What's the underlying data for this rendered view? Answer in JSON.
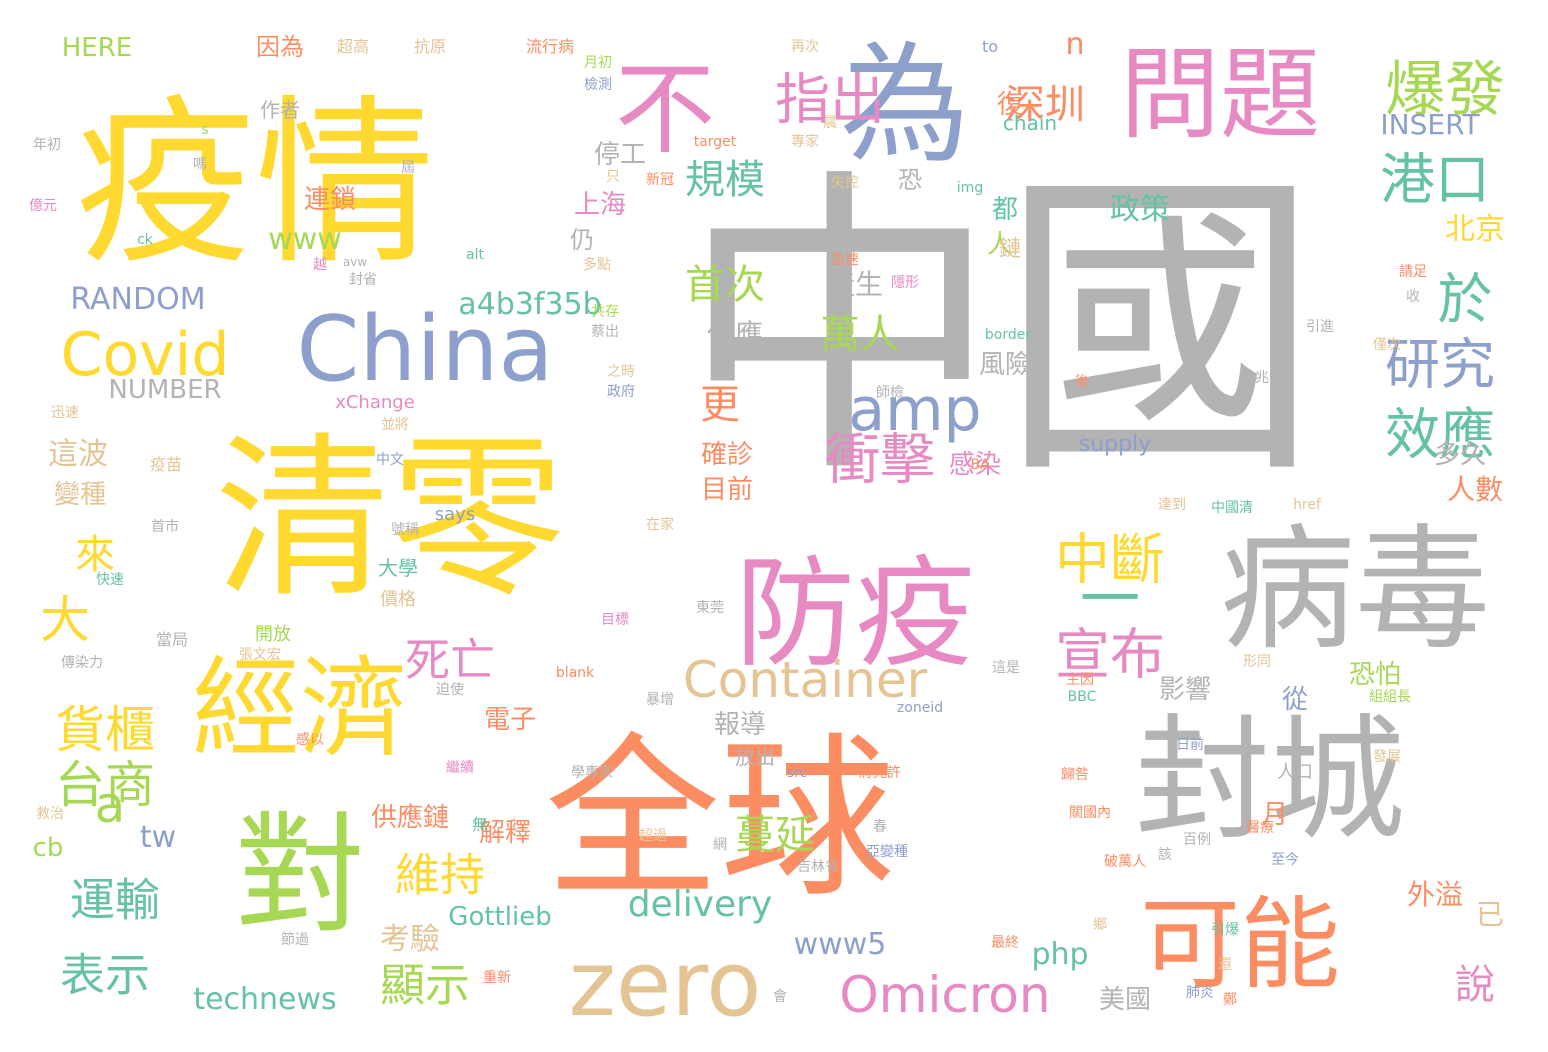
{
  "palette": {
    "gray": "#b3b3b3",
    "yellow": "#ffd92f",
    "orange": "#fc8d62",
    "blue": "#8da0cb",
    "pink": "#e78ac3",
    "green": "#a6d854",
    "teal": "#66c2a5",
    "tan": "#e5c494"
  },
  "words": [
    {
      "text": "中國",
      "color": "gray",
      "size": 320
    },
    {
      "text": "疫情",
      "color": "yellow",
      "size": 180
    },
    {
      "text": "清零",
      "color": "yellow",
      "size": 175
    },
    {
      "text": "全球",
      "color": "orange",
      "size": 175
    },
    {
      "text": "為",
      "color": "blue",
      "size": 130
    },
    {
      "text": "不",
      "color": "pink",
      "size": 100
    },
    {
      "text": "問題",
      "color": "pink",
      "size": 100
    },
    {
      "text": "病毒",
      "color": "gray",
      "size": 135
    },
    {
      "text": "封城",
      "color": "gray",
      "size": 135
    },
    {
      "text": "China",
      "color": "blue",
      "size": 90
    },
    {
      "text": "防疫",
      "color": "pink",
      "size": 120
    },
    {
      "text": "經濟",
      "color": "yellow",
      "size": 108
    },
    {
      "text": "對",
      "color": "green",
      "size": 130
    },
    {
      "text": "可能",
      "color": "orange",
      "size": 100
    },
    {
      "text": "zero",
      "color": "tan",
      "size": 90
    },
    {
      "text": "指出",
      "color": "pink",
      "size": 55
    },
    {
      "text": "爆發",
      "color": "green",
      "size": 60
    },
    {
      "text": "港口",
      "color": "teal",
      "size": 55
    },
    {
      "text": "於",
      "color": "teal",
      "size": 55
    },
    {
      "text": "研究",
      "color": "blue",
      "size": 55
    },
    {
      "text": "效應",
      "color": "teal",
      "size": 55
    },
    {
      "text": "Covid",
      "color": "yellow",
      "size": 60
    },
    {
      "text": "amp",
      "color": "blue",
      "size": 60
    },
    {
      "text": "衝擊",
      "color": "pink",
      "size": 55
    },
    {
      "text": "中斷",
      "color": "yellow",
      "size": 55
    },
    {
      "text": "一",
      "color": "teal",
      "size": 60
    },
    {
      "text": "宣布",
      "color": "pink",
      "size": 55
    },
    {
      "text": "Container",
      "color": "tan",
      "size": 50
    },
    {
      "text": "Omicron",
      "color": "pink",
      "size": 50
    },
    {
      "text": "規模",
      "color": "teal",
      "size": 40
    },
    {
      "text": "深圳",
      "color": "orange",
      "size": 40
    },
    {
      "text": "貨櫃",
      "color": "yellow",
      "size": 50
    },
    {
      "text": "台商",
      "color": "green",
      "size": 50
    },
    {
      "text": "死亡",
      "color": "pink",
      "size": 45
    },
    {
      "text": "大",
      "color": "yellow",
      "size": 50
    },
    {
      "text": "來",
      "color": "yellow",
      "size": 40
    },
    {
      "text": "萬人",
      "color": "green",
      "size": 40
    },
    {
      "text": "首次",
      "color": "green",
      "size": 40
    },
    {
      "text": "a4b3f35b",
      "color": "teal",
      "size": 30
    },
    {
      "text": "www",
      "color": "green",
      "size": 30
    },
    {
      "text": "RANDOM",
      "color": "blue",
      "size": 30
    },
    {
      "text": "NUMBER",
      "color": "gray",
      "size": 26
    },
    {
      "text": "政策",
      "color": "teal",
      "size": 30
    },
    {
      "text": "北京",
      "color": "yellow",
      "size": 30
    },
    {
      "text": "上海",
      "color": "pink",
      "size": 26
    },
    {
      "text": "停工",
      "color": "gray",
      "size": 26
    },
    {
      "text": "產生",
      "color": "gray",
      "size": 28
    },
    {
      "text": "供應",
      "color": "gray",
      "size": 28
    },
    {
      "text": "連鎖",
      "color": "orange",
      "size": 26
    },
    {
      "text": "更",
      "color": "orange",
      "size": 40
    },
    {
      "text": "這波",
      "color": "tan",
      "size": 30
    },
    {
      "text": "變種",
      "color": "tan",
      "size": 26
    },
    {
      "text": "確診",
      "color": "orange",
      "size": 26
    },
    {
      "text": "目前",
      "color": "orange",
      "size": 26
    },
    {
      "text": "感染",
      "color": "pink",
      "size": 26
    },
    {
      "text": "人數",
      "color": "orange",
      "size": 28
    },
    {
      "text": "多久",
      "color": "gray",
      "size": 26
    },
    {
      "text": "風險",
      "color": "gray",
      "size": 26
    },
    {
      "text": "INSERT",
      "color": "blue",
      "size": 28
    },
    {
      "text": "HERE",
      "color": "green",
      "size": 26
    },
    {
      "text": "因為",
      "color": "orange",
      "size": 24
    },
    {
      "text": "作者",
      "color": "gray",
      "size": 20
    },
    {
      "text": "恐",
      "color": "gray",
      "size": 24
    },
    {
      "text": "都",
      "color": "teal",
      "size": 26
    },
    {
      "text": "仍",
      "color": "gray",
      "size": 24
    },
    {
      "text": "人",
      "color": "green",
      "size": 26
    },
    {
      "text": "a",
      "color": "green",
      "size": 50
    },
    {
      "text": "tw",
      "color": "blue",
      "size": 30
    },
    {
      "text": "cb",
      "color": "green",
      "size": 26
    },
    {
      "text": "運輸",
      "color": "teal",
      "size": 45
    },
    {
      "text": "表示",
      "color": "teal",
      "size": 45
    },
    {
      "text": "technews",
      "color": "teal",
      "size": 30
    },
    {
      "text": "考驗",
      "color": "tan",
      "size": 30
    },
    {
      "text": "顯示",
      "color": "green",
      "size": 45
    },
    {
      "text": "維持",
      "color": "yellow",
      "size": 45
    },
    {
      "text": "蔓延",
      "color": "green",
      "size": 40
    },
    {
      "text": "delivery",
      "color": "teal",
      "size": 36
    },
    {
      "text": "www5",
      "color": "blue",
      "size": 30
    },
    {
      "text": "Gottlieb",
      "color": "teal",
      "size": 26
    },
    {
      "text": "php",
      "color": "teal",
      "size": 30
    },
    {
      "text": "美國",
      "color": "gray",
      "size": 26
    },
    {
      "text": "說",
      "color": "pink",
      "size": 40
    },
    {
      "text": "外溢",
      "color": "orange",
      "size": 28
    },
    {
      "text": "已",
      "color": "tan",
      "size": 28
    },
    {
      "text": "恐怕",
      "color": "green",
      "size": 26
    },
    {
      "text": "從",
      "color": "blue",
      "size": 26
    },
    {
      "text": "影響",
      "color": "gray",
      "size": 26
    },
    {
      "text": "報導",
      "color": "gray",
      "size": 26
    },
    {
      "text": "電子",
      "color": "orange",
      "size": 26
    },
    {
      "text": "解釋",
      "color": "orange",
      "size": 26
    },
    {
      "text": "供應鏈",
      "color": "orange",
      "size": 26
    },
    {
      "text": "月",
      "color": "orange",
      "size": 26
    },
    {
      "text": "n",
      "color": "orange",
      "size": 30
    },
    {
      "text": "復",
      "color": "orange",
      "size": 26
    },
    {
      "text": "鏈",
      "color": "tan",
      "size": 22
    },
    {
      "text": "supply",
      "color": "blue",
      "size": 22
    },
    {
      "text": "chain",
      "color": "teal",
      "size": 20
    },
    {
      "text": "xChange",
      "color": "pink",
      "size": 18
    },
    {
      "text": "says",
      "color": "blue",
      "size": 18
    },
    {
      "text": "大學",
      "color": "teal",
      "size": 20
    },
    {
      "text": "價格",
      "color": "tan",
      "size": 18
    },
    {
      "text": "開放",
      "color": "green",
      "size": 18
    },
    {
      "text": "放出",
      "color": "gray",
      "size": 20
    },
    {
      "text": "人口",
      "color": "gray",
      "size": 18
    },
    {
      "text": "疫苗",
      "color": "tan",
      "size": 16
    },
    {
      "text": "超高",
      "color": "tan",
      "size": 16
    },
    {
      "text": "抗原",
      "color": "tan",
      "size": 16
    },
    {
      "text": "流行病",
      "color": "orange",
      "size": 16
    },
    {
      "text": "月初",
      "color": "green",
      "size": 14
    },
    {
      "text": "檢測",
      "color": "blue",
      "size": 14
    },
    {
      "text": "再次",
      "color": "tan",
      "size": 14
    },
    {
      "text": "to",
      "color": "blue",
      "size": 16
    },
    {
      "text": "target",
      "color": "orange",
      "size": 14
    },
    {
      "text": "專家",
      "color": "tan",
      "size": 14
    },
    {
      "text": "晨",
      "color": "tan",
      "size": 14
    },
    {
      "text": "新冠",
      "color": "orange",
      "size": 14
    },
    {
      "text": "失控",
      "color": "tan",
      "size": 14
    },
    {
      "text": "img",
      "color": "teal",
      "size": 14
    },
    {
      "text": "急速",
      "color": "orange",
      "size": 14
    },
    {
      "text": "多點",
      "color": "tan",
      "size": 14
    },
    {
      "text": "封省",
      "color": "gray",
      "size": 14
    },
    {
      "text": "共存",
      "color": "green",
      "size": 14
    },
    {
      "text": "蔡出",
      "color": "gray",
      "size": 14
    },
    {
      "text": "之時",
      "color": "tan",
      "size": 14
    },
    {
      "text": "政府",
      "color": "blue",
      "size": 14
    },
    {
      "text": "border",
      "color": "teal",
      "size": 14
    },
    {
      "text": "僅次",
      "color": "tan",
      "size": 14
    },
    {
      "text": "後",
      "color": "orange",
      "size": 14
    },
    {
      "text": "達到",
      "color": "tan",
      "size": 14
    },
    {
      "text": "中國清",
      "color": "teal",
      "size": 14
    },
    {
      "text": "href",
      "color": "tan",
      "size": 14
    },
    {
      "text": "在家",
      "color": "tan",
      "size": 14
    },
    {
      "text": "號稱",
      "color": "gray",
      "size": 14
    },
    {
      "text": "中文",
      "color": "blue",
      "size": 14
    },
    {
      "text": "並將",
      "color": "tan",
      "size": 14
    },
    {
      "text": "迅速",
      "color": "tan",
      "size": 14
    },
    {
      "text": "首市",
      "color": "gray",
      "size": 14
    },
    {
      "text": "當局",
      "color": "gray",
      "size": 16
    },
    {
      "text": "目標",
      "color": "pink",
      "size": 14
    },
    {
      "text": "張文宏",
      "color": "tan",
      "size": 14
    },
    {
      "text": "傳染力",
      "color": "gray",
      "size": 14
    },
    {
      "text": "blank",
      "color": "orange",
      "size": 14
    },
    {
      "text": "東莞",
      "color": "gray",
      "size": 14
    },
    {
      "text": "zoneid",
      "color": "blue",
      "size": 14
    },
    {
      "text": "這是",
      "color": "gray",
      "size": 14
    },
    {
      "text": "主因",
      "color": "orange",
      "size": 14
    },
    {
      "text": "BBC",
      "color": "teal",
      "size": 14
    },
    {
      "text": "形同",
      "color": "tan",
      "size": 14
    },
    {
      "text": "組組長",
      "color": "green",
      "size": 14
    },
    {
      "text": "日前",
      "color": "blue",
      "size": 14
    },
    {
      "text": "src",
      "color": "blue",
      "size": 14
    },
    {
      "text": "學專家",
      "color": "gray",
      "size": 14
    },
    {
      "text": "將允許",
      "color": "orange",
      "size": 14
    },
    {
      "text": "歸咎",
      "color": "orange",
      "size": 14
    },
    {
      "text": "發展",
      "color": "tan",
      "size": 14
    },
    {
      "text": "繼續",
      "color": "pink",
      "size": 14
    },
    {
      "text": "醫療",
      "color": "orange",
      "size": 14
    },
    {
      "text": "關國內",
      "color": "orange",
      "size": 14
    },
    {
      "text": "超過",
      "color": "tan",
      "size": 14
    },
    {
      "text": "亞變種",
      "color": "blue",
      "size": 14
    },
    {
      "text": "破萬人",
      "color": "orange",
      "size": 14
    },
    {
      "text": "吉林省",
      "color": "gray",
      "size": 14
    },
    {
      "text": "至今",
      "color": "blue",
      "size": 14
    },
    {
      "text": "百例",
      "color": "gray",
      "size": 14
    },
    {
      "text": "引爆",
      "color": "teal",
      "size": 14
    },
    {
      "text": "節過",
      "color": "gray",
      "size": 14
    },
    {
      "text": "重新",
      "color": "orange",
      "size": 14
    },
    {
      "text": "會",
      "color": "gray",
      "size": 14
    },
    {
      "text": "肺炎",
      "color": "blue",
      "size": 14
    },
    {
      "text": "救治",
      "color": "tan",
      "size": 14
    },
    {
      "text": "請足",
      "color": "orange",
      "size": 14
    },
    {
      "text": "收",
      "color": "gray",
      "size": 14
    },
    {
      "text": "引進",
      "color": "gray",
      "size": 14
    },
    {
      "text": "前兆",
      "color": "gray",
      "size": 14
    },
    {
      "text": "師檢",
      "color": "gray",
      "size": 14
    },
    {
      "text": "隱形",
      "color": "pink",
      "size": 14
    },
    {
      "text": "BA",
      "color": "orange",
      "size": 14
    },
    {
      "text": "只",
      "color": "tan",
      "size": 14
    },
    {
      "text": "屆",
      "color": "gray",
      "size": 14
    },
    {
      "text": "alt",
      "color": "teal",
      "size": 14
    },
    {
      "text": "avw",
      "color": "gray",
      "size": 12
    },
    {
      "text": "越",
      "color": "pink",
      "size": 14
    },
    {
      "text": "ck",
      "color": "teal",
      "size": 14
    },
    {
      "text": "億元",
      "color": "pink",
      "size": 14
    },
    {
      "text": "年初",
      "color": "gray",
      "size": 14
    },
    {
      "text": "嗎",
      "color": "gray",
      "size": 14
    },
    {
      "text": "s",
      "color": "green",
      "size": 14
    },
    {
      "text": "感以",
      "color": "orange",
      "size": 14
    },
    {
      "text": "快速",
      "color": "teal",
      "size": 14
    },
    {
      "text": "暴增",
      "color": "gray",
      "size": 14
    },
    {
      "text": "迫使",
      "color": "gray",
      "size": 14
    },
    {
      "text": "網",
      "color": "gray",
      "size": 14
    },
    {
      "text": "無",
      "color": "teal",
      "size": 16
    },
    {
      "text": "春",
      "color": "gray",
      "size": 14
    },
    {
      "text": "該",
      "color": "gray",
      "size": 14
    },
    {
      "text": "鄉",
      "color": "tan",
      "size": 14
    },
    {
      "text": "最終",
      "color": "orange",
      "size": 14
    },
    {
      "text": "還",
      "color": "tan",
      "size": 14
    },
    {
      "text": "鄭",
      "color": "orange",
      "size": 14
    }
  ]
}
